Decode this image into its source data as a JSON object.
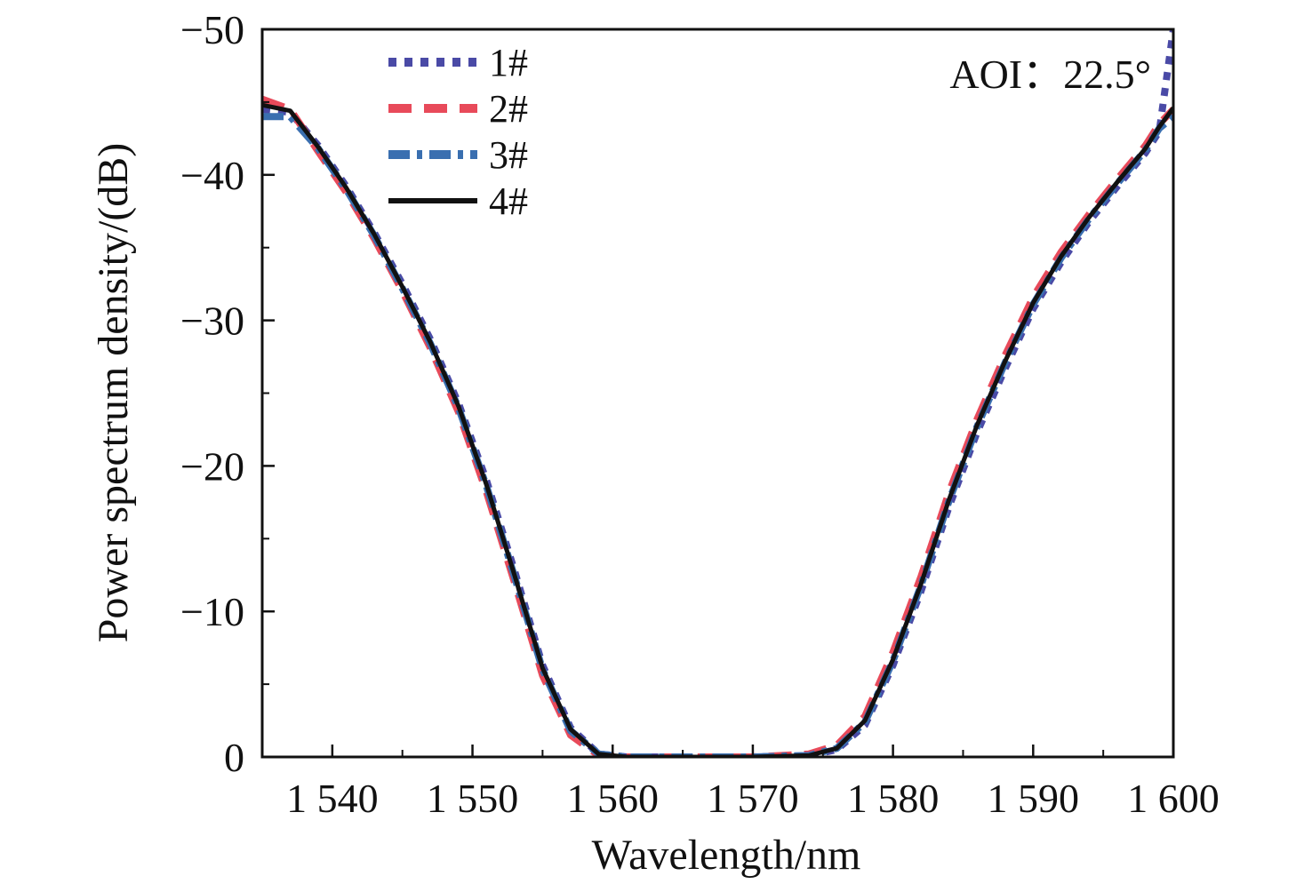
{
  "chart_data": {
    "type": "line",
    "title": "",
    "xlabel": "Wavelength/nm",
    "ylabel": "Power spectrum density/(dB)",
    "xlim": [
      1535,
      1600
    ],
    "ylim": [
      0,
      -50
    ],
    "x_ticks": [
      1540,
      1550,
      1560,
      1570,
      1580,
      1590,
      1600
    ],
    "x_tick_labels": [
      "1 540",
      "1 550",
      "1 560",
      "1 570",
      "1 580",
      "1 590",
      "1 600"
    ],
    "y_ticks": [
      -50,
      -40,
      -30,
      -20,
      -10,
      0
    ],
    "y_tick_labels": [
      "−50",
      "−40",
      "−30",
      "−20",
      "−10",
      "0"
    ],
    "y_axis_inverted": true,
    "grid": false,
    "legend_position": "top-left",
    "annotation": "AOI：22.5°",
    "series": [
      {
        "name": "1#",
        "color": "#4a4aa6",
        "dash": "dot",
        "x": [
          1535,
          1537,
          1539,
          1541,
          1543,
          1545,
          1547,
          1549,
          1551,
          1553,
          1555,
          1557,
          1559,
          1561,
          1565,
          1570,
          1574,
          1576,
          1578,
          1580,
          1582,
          1584,
          1586,
          1588,
          1590,
          1592,
          1594,
          1596,
          1598,
          1599,
          1600
        ],
        "y": [
          -44.5,
          -44.3,
          -42,
          -39.2,
          -36,
          -32.5,
          -28.7,
          -24.3,
          -19,
          -12.8,
          -6.3,
          -2,
          -0.2,
          0,
          0,
          0,
          -0.1,
          -0.5,
          -2.2,
          -6.3,
          -11.4,
          -17.2,
          -22.3,
          -26.7,
          -30.8,
          -34,
          -36.8,
          -39.2,
          -41.5,
          -43,
          -50
        ]
      },
      {
        "name": "2#",
        "color": "#e84a5a",
        "dash": "dash",
        "x": [
          1535,
          1537,
          1539,
          1541,
          1543,
          1545,
          1547,
          1549,
          1551,
          1553,
          1555,
          1557,
          1559,
          1561,
          1565,
          1570,
          1574,
          1576,
          1578,
          1580,
          1582,
          1584,
          1586,
          1588,
          1590,
          1592,
          1594,
          1596,
          1598,
          1599,
          1600
        ],
        "y": [
          -45.2,
          -44.5,
          -41.6,
          -38.8,
          -35.6,
          -32,
          -28.1,
          -23.7,
          -18.2,
          -12,
          -5.6,
          -1.5,
          -0.1,
          0,
          0,
          0,
          -0.2,
          -0.8,
          -2.8,
          -7.2,
          -12.4,
          -18.2,
          -23.2,
          -27.6,
          -31.6,
          -34.7,
          -37.3,
          -39.7,
          -42,
          -43.5,
          -44.5
        ]
      },
      {
        "name": "3#",
        "color": "#3a6fb0",
        "dash": "dashdot",
        "x": [
          1535,
          1537,
          1539,
          1541,
          1543,
          1545,
          1547,
          1549,
          1551,
          1553,
          1555,
          1557,
          1559,
          1561,
          1565,
          1570,
          1574,
          1576,
          1578,
          1580,
          1582,
          1584,
          1586,
          1588,
          1590,
          1592,
          1594,
          1596,
          1598,
          1599,
          1600
        ],
        "y": [
          -44,
          -44,
          -41.8,
          -39,
          -35.8,
          -32.2,
          -28.4,
          -24,
          -18.6,
          -12.4,
          -6,
          -1.8,
          -0.2,
          0,
          0,
          0,
          -0.1,
          -0.6,
          -2.4,
          -6.6,
          -11.8,
          -17.6,
          -22.7,
          -27.1,
          -31.1,
          -34.3,
          -37,
          -39.4,
          -41.7,
          -43.2,
          -44
        ]
      },
      {
        "name": "4#",
        "color": "#111111",
        "dash": "solid",
        "x": [
          1535,
          1537,
          1539,
          1541,
          1543,
          1545,
          1547,
          1549,
          1551,
          1553,
          1555,
          1557,
          1559,
          1561,
          1565,
          1570,
          1574,
          1576,
          1578,
          1580,
          1582,
          1584,
          1586,
          1588,
          1590,
          1592,
          1594,
          1596,
          1598,
          1599,
          1600
        ],
        "y": [
          -44.8,
          -44.4,
          -41.9,
          -39.1,
          -35.9,
          -32.3,
          -28.5,
          -24.1,
          -18.7,
          -12.5,
          -6.1,
          -1.9,
          -0.2,
          0,
          0,
          0,
          -0.1,
          -0.6,
          -2.5,
          -6.7,
          -11.9,
          -17.7,
          -22.8,
          -27.2,
          -31.2,
          -34.4,
          -37.1,
          -39.5,
          -41.8,
          -43.3,
          -44.6
        ]
      }
    ]
  }
}
